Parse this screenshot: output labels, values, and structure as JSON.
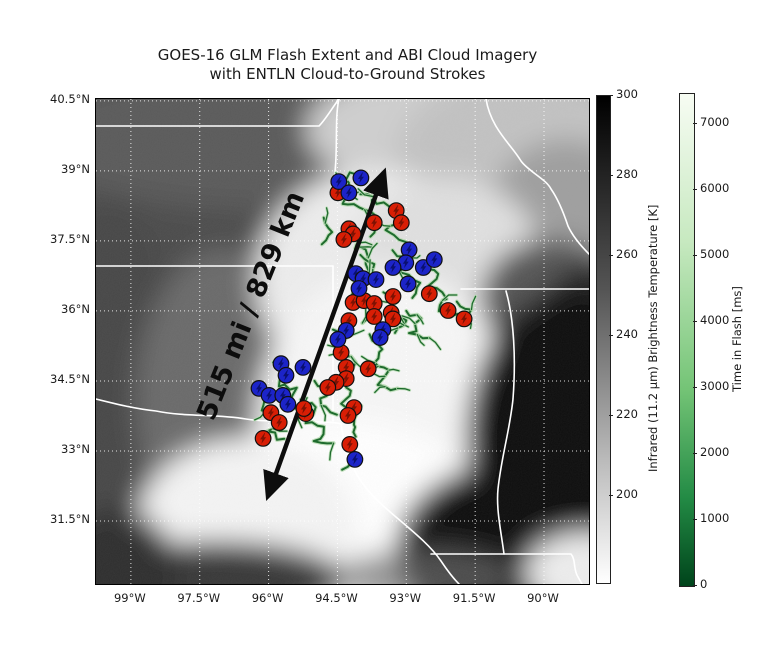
{
  "chart_data": {
    "type": "scatter",
    "title": "GOES-16 GLM Flash Extent and ABI Cloud Imagery",
    "subtitle": "with ENTLN Cloud-to-Ground Strokes",
    "background": "GOES-16 ABI grayscale infrared cloud imagery with white state borders and dotted graticule",
    "extent": {
      "lon_min": -99.76,
      "lon_max": -89.02,
      "lat_min": 30.15,
      "lat_max": 40.54
    },
    "x_ticks": [
      {
        "label": "99°W",
        "lon": -99
      },
      {
        "label": "97.5°W",
        "lon": -97.5
      },
      {
        "label": "96°W",
        "lon": -96
      },
      {
        "label": "94.5°W",
        "lon": -94.5
      },
      {
        "label": "93°W",
        "lon": -93
      },
      {
        "label": "91.5°W",
        "lon": -91.5
      },
      {
        "label": "90°W",
        "lon": -90
      }
    ],
    "y_ticks": [
      {
        "label": "40.5°N",
        "lat": 40.5
      },
      {
        "label": "39°N",
        "lat": 39
      },
      {
        "label": "37.5°N",
        "lat": 37.5
      },
      {
        "label": "36°N",
        "lat": 36
      },
      {
        "label": "34.5°N",
        "lat": 34.5
      },
      {
        "label": "33°N",
        "lat": 33
      },
      {
        "label": "31.5°N",
        "lat": 31.5
      }
    ],
    "annotation": {
      "text": "515 mi / 829 km",
      "distance_mi": 515,
      "distance_km": 829,
      "arrow_from": {
        "lon": -95.99,
        "lat": 32.1
      },
      "arrow_to": {
        "lon": -93.51,
        "lat": 38.9
      }
    },
    "colorbars": [
      {
        "id": "ir",
        "label": "Infrared (11.2 μm) Brightness Temperature [K]",
        "ticks": [
          300,
          280,
          260,
          240,
          220,
          200
        ],
        "top_value": 300,
        "colormap": "gray (dark = warm top, light = cold bottom)"
      },
      {
        "id": "time",
        "label": "Time in Flash [ms]",
        "ticks": [
          7000,
          6000,
          5000,
          4000,
          3000,
          2000,
          1000,
          0
        ],
        "colormap": "greens (light = late top, dark = 0 bottom)"
      }
    ],
    "colors": {
      "stroke_red": "#d81e05",
      "stroke_red_bolt": "#7c1203",
      "stroke_blue": "#1c24c8",
      "stroke_blue_bolt": "#0a1070",
      "flash_core": "#1e6b2d",
      "flash_halo": "#b9dcb4",
      "arrow": "#0d0d0d",
      "grid": "#ffffff",
      "border": "#ffffff"
    },
    "series": [
      {
        "name": "cg_strokes_red",
        "marker": "circle-lightning",
        "color": "#d81e05",
        "points": [
          [
            -94.49,
            38.53
          ],
          [
            -93.7,
            37.89
          ],
          [
            -93.22,
            38.15
          ],
          [
            -93.11,
            37.89
          ],
          [
            -94.25,
            37.76
          ],
          [
            -94.16,
            37.65
          ],
          [
            -94.36,
            37.53
          ],
          [
            -92.5,
            36.37
          ],
          [
            -93.29,
            36.31
          ],
          [
            -94.16,
            36.18
          ],
          [
            -93.92,
            36.22
          ],
          [
            -93.7,
            36.16
          ],
          [
            -93.33,
            35.96
          ],
          [
            -94.25,
            35.79
          ],
          [
            -93.7,
            35.88
          ],
          [
            -93.29,
            35.83
          ],
          [
            -92.09,
            36.01
          ],
          [
            -91.74,
            35.83
          ],
          [
            -94.42,
            35.11
          ],
          [
            -94.31,
            34.79
          ],
          [
            -93.83,
            34.76
          ],
          [
            -94.31,
            34.55
          ],
          [
            -94.53,
            34.47
          ],
          [
            -94.71,
            34.36
          ],
          [
            -95.95,
            33.82
          ],
          [
            -95.77,
            33.61
          ],
          [
            -96.12,
            33.27
          ],
          [
            -95.19,
            33.8
          ],
          [
            -94.14,
            33.93
          ],
          [
            -95.23,
            33.91
          ],
          [
            -94.27,
            33.76
          ],
          [
            -94.23,
            33.14
          ]
        ]
      },
      {
        "name": "cg_strokes_blue",
        "marker": "circle-lightning",
        "color": "#1c24c8",
        "points": [
          [
            -94.47,
            38.77
          ],
          [
            -93.99,
            38.85
          ],
          [
            -94.25,
            38.53
          ],
          [
            -92.94,
            37.31
          ],
          [
            -93.01,
            37.03
          ],
          [
            -92.63,
            36.93
          ],
          [
            -93.29,
            36.93
          ],
          [
            -92.96,
            36.58
          ],
          [
            -94.1,
            36.8
          ],
          [
            -93.94,
            36.69
          ],
          [
            -94.03,
            36.48
          ],
          [
            -93.66,
            36.67
          ],
          [
            -92.39,
            37.1
          ],
          [
            -94.31,
            35.58
          ],
          [
            -93.51,
            35.6
          ],
          [
            -93.57,
            35.43
          ],
          [
            -94.49,
            35.39
          ],
          [
            -95.73,
            34.87
          ],
          [
            -95.25,
            34.79
          ],
          [
            -95.62,
            34.62
          ],
          [
            -96.21,
            34.34
          ],
          [
            -95.99,
            34.19
          ],
          [
            -95.69,
            34.19
          ],
          [
            -95.58,
            34.0
          ],
          [
            -94.12,
            32.82
          ]
        ]
      },
      {
        "name": "glm_flash_extent_traces",
        "marker": "polyline",
        "color": "#1e6b2d",
        "polylines": [
          [
            [
              -94.5,
              38.9
            ],
            [
              -94.2,
              38.6
            ],
            [
              -94.4,
              38.3
            ],
            [
              -93.9,
              38.2
            ],
            [
              -93.6,
              37.9
            ],
            [
              -93.8,
              37.6
            ]
          ],
          [
            [
              -94.0,
              38.5
            ],
            [
              -93.5,
              38.3
            ],
            [
              -93.2,
              38.0
            ],
            [
              -93.4,
              37.7
            ],
            [
              -93.0,
              37.5
            ]
          ],
          [
            [
              -94.3,
              37.9
            ],
            [
              -94.0,
              37.7
            ],
            [
              -94.15,
              37.35
            ],
            [
              -93.8,
              37.2
            ],
            [
              -93.9,
              36.9
            ]
          ],
          [
            [
              -93.3,
              37.3
            ],
            [
              -92.9,
              37.1
            ],
            [
              -93.1,
              36.8
            ],
            [
              -92.7,
              36.6
            ],
            [
              -92.9,
              36.3
            ]
          ],
          [
            [
              -92.6,
              37.0
            ],
            [
              -92.3,
              36.8
            ],
            [
              -92.5,
              36.5
            ],
            [
              -92.1,
              36.3
            ],
            [
              -92.3,
              36.0
            ],
            [
              -91.9,
              35.9
            ]
          ],
          [
            [
              -94.2,
              36.7
            ],
            [
              -93.9,
              36.5
            ],
            [
              -94.1,
              36.2
            ],
            [
              -93.7,
              36.0
            ],
            [
              -93.9,
              35.7
            ]
          ],
          [
            [
              -93.5,
              36.4
            ],
            [
              -93.2,
              36.2
            ],
            [
              -93.4,
              35.9
            ],
            [
              -93.0,
              35.8
            ],
            [
              -93.2,
              35.5
            ]
          ],
          [
            [
              -91.9,
              36.2
            ],
            [
              -91.6,
              36.0
            ],
            [
              -91.8,
              35.7
            ]
          ],
          [
            [
              -94.6,
              35.6
            ],
            [
              -94.3,
              35.4
            ],
            [
              -94.5,
              35.1
            ],
            [
              -94.1,
              34.9
            ],
            [
              -94.3,
              34.6
            ]
          ],
          [
            [
              -93.8,
              35.5
            ],
            [
              -93.5,
              35.2
            ],
            [
              -93.7,
              34.9
            ],
            [
              -93.4,
              34.7
            ],
            [
              -93.6,
              34.4
            ],
            [
              -93.2,
              34.3
            ]
          ],
          [
            [
              -95.9,
              34.9
            ],
            [
              -95.6,
              34.7
            ],
            [
              -95.8,
              34.4
            ],
            [
              -95.4,
              34.3
            ],
            [
              -95.6,
              34.0
            ],
            [
              -95.2,
              33.9
            ]
          ],
          [
            [
              -96.3,
              34.4
            ],
            [
              -96.0,
              34.2
            ],
            [
              -96.2,
              33.9
            ],
            [
              -95.8,
              33.7
            ],
            [
              -96.0,
              33.4
            ],
            [
              -95.7,
              33.2
            ]
          ],
          [
            [
              -95.3,
              34.1
            ],
            [
              -95.0,
              33.9
            ],
            [
              -95.2,
              33.6
            ],
            [
              -94.8,
              33.5
            ],
            [
              -95.0,
              33.2
            ],
            [
              -94.6,
              33.1
            ]
          ],
          [
            [
              -94.5,
              34.5
            ],
            [
              -94.2,
              34.3
            ],
            [
              -94.4,
              34.0
            ],
            [
              -94.0,
              33.9
            ],
            [
              -94.2,
              33.6
            ],
            [
              -94.15,
              33.3
            ]
          ],
          [
            [
              -94.1,
              32.85
            ],
            [
              -94.4,
              32.6
            ]
          ],
          [
            [
              -94.8,
              38.0
            ],
            [
              -94.6,
              37.7
            ],
            [
              -94.8,
              37.4
            ]
          ],
          [
            [
              -94.45,
              38.85
            ],
            [
              -94.1,
              38.95
            ],
            [
              -93.85,
              38.8
            ]
          ],
          [
            [
              -93.0,
              36.0
            ],
            [
              -92.7,
              35.8
            ],
            [
              -92.9,
              35.5
            ],
            [
              -92.5,
              35.4
            ]
          ],
          [
            [
              -94.0,
              37.2
            ],
            [
              -93.7,
              37.0
            ],
            [
              -93.85,
              36.7
            ]
          ],
          [
            [
              -95.0,
              34.5
            ],
            [
              -94.7,
              34.3
            ],
            [
              -94.9,
              34.0
            ],
            [
              -94.5,
              33.8
            ]
          ]
        ]
      }
    ]
  }
}
